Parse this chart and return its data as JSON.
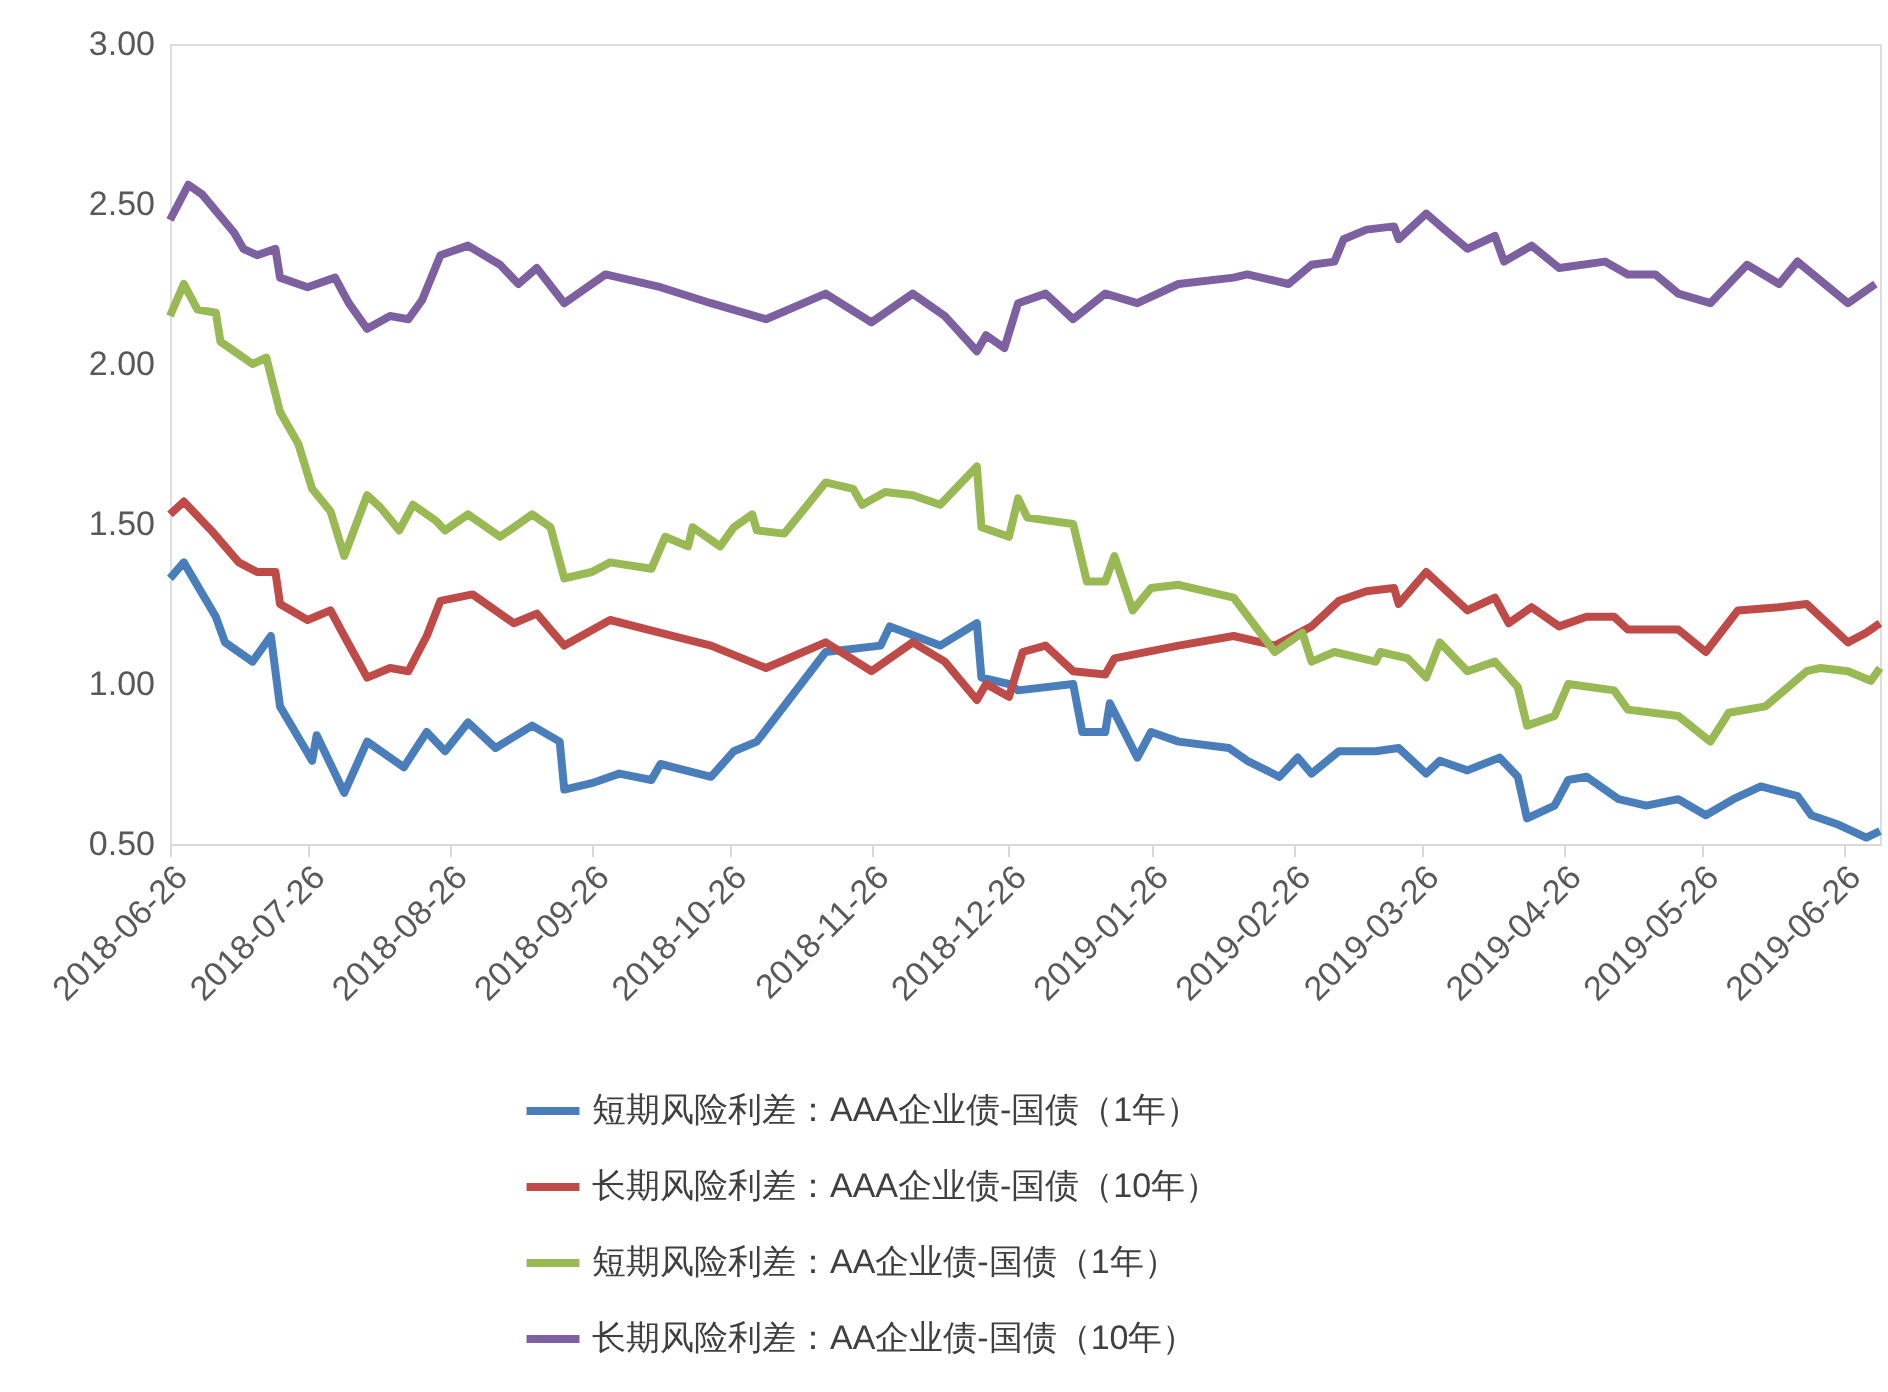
{
  "chart_data": {
    "type": "line",
    "xlim": [
      "2018-06-26",
      "2019-07-04"
    ],
    "xticks": [
      "2018-06-26",
      "2018-07-26",
      "2018-08-26",
      "2018-09-26",
      "2018-10-26",
      "2018-11-26",
      "2018-12-26",
      "2019-01-26",
      "2019-02-26",
      "2019-03-26",
      "2019-04-26",
      "2019-05-26",
      "2019-06-26"
    ],
    "ylim": [
      0.5,
      3.0
    ],
    "yticks": [
      {
        "value": 0.5,
        "label": "0.50"
      },
      {
        "value": 1.0,
        "label": "1.00"
      },
      {
        "value": 1.5,
        "label": "1.50"
      },
      {
        "value": 2.0,
        "label": "2.00"
      },
      {
        "value": 2.5,
        "label": "2.50"
      },
      {
        "value": 3.0,
        "label": "3.00"
      }
    ],
    "grid": false,
    "legend": "bottom",
    "series": [
      {
        "name": "短期风险利差：AAA企业债-国债（1年）",
        "color": "#4a7ebb",
        "x": [
          "2018-06-26",
          "2018-06-29",
          "2018-07-06",
          "2018-07-08",
          "2018-07-14",
          "2018-07-18",
          "2018-07-20",
          "2018-07-27",
          "2018-07-28",
          "2018-08-03",
          "2018-08-08",
          "2018-08-16",
          "2018-08-21",
          "2018-08-25",
          "2018-08-30",
          "2018-09-05",
          "2018-09-13",
          "2018-09-19",
          "2018-09-20",
          "2018-09-26",
          "2018-10-02",
          "2018-10-09",
          "2018-10-11",
          "2018-10-22",
          "2018-10-27",
          "2018-11-01",
          "2018-11-16",
          "2018-11-28",
          "2018-11-30",
          "2018-12-11",
          "2018-12-19",
          "2018-12-20",
          "2018-12-26",
          "2018-12-28",
          "2019-01-09",
          "2019-01-11",
          "2019-01-16",
          "2019-01-17",
          "2019-01-23",
          "2019-01-26",
          "2019-02-01",
          "2019-02-12",
          "2019-02-16",
          "2019-02-23",
          "2019-02-27",
          "2019-03-02",
          "2019-03-08",
          "2019-03-16",
          "2019-03-21",
          "2019-03-27",
          "2019-03-30",
          "2019-04-05",
          "2019-04-12",
          "2019-04-16",
          "2019-04-18",
          "2019-04-24",
          "2019-04-27",
          "2019-05-01",
          "2019-05-08",
          "2019-05-14",
          "2019-05-21",
          "2019-05-27",
          "2019-06-02",
          "2019-06-08",
          "2019-06-16",
          "2019-06-19",
          "2019-06-25",
          "2019-07-01",
          "2019-07-04"
        ],
        "values": [
          1.33,
          1.38,
          1.21,
          1.13,
          1.07,
          1.15,
          0.93,
          0.76,
          0.84,
          0.66,
          0.82,
          0.74,
          0.85,
          0.79,
          0.88,
          0.8,
          0.87,
          0.82,
          0.67,
          0.69,
          0.72,
          0.7,
          0.75,
          0.71,
          0.79,
          0.82,
          1.1,
          1.12,
          1.18,
          1.12,
          1.19,
          1.02,
          1.0,
          0.98,
          1.0,
          0.85,
          0.85,
          0.94,
          0.77,
          0.85,
          0.82,
          0.8,
          0.76,
          0.71,
          0.77,
          0.72,
          0.79,
          0.79,
          0.8,
          0.72,
          0.76,
          0.73,
          0.77,
          0.71,
          0.58,
          0.62,
          0.7,
          0.71,
          0.64,
          0.62,
          0.64,
          0.59,
          0.64,
          0.68,
          0.65,
          0.59,
          0.56,
          0.52,
          0.54
        ]
      },
      {
        "name": "长期风险利差：AAA企业债-国债（10年）",
        "color": "#be4b48",
        "x": [
          "2018-06-26",
          "2018-06-29",
          "2018-07-05",
          "2018-07-11",
          "2018-07-15",
          "2018-07-19",
          "2018-07-20",
          "2018-07-26",
          "2018-07-31",
          "2018-08-03",
          "2018-08-08",
          "2018-08-13",
          "2018-08-17",
          "2018-08-21",
          "2018-08-24",
          "2018-08-31",
          "2018-09-09",
          "2018-09-14",
          "2018-09-20",
          "2018-09-30",
          "2018-10-11",
          "2018-10-22",
          "2018-11-03",
          "2018-11-16",
          "2018-11-26",
          "2018-12-05",
          "2018-12-12",
          "2018-12-19",
          "2018-12-21",
          "2018-12-26",
          "2018-12-29",
          "2019-01-03",
          "2019-01-09",
          "2019-01-16",
          "2019-01-18",
          "2019-02-01",
          "2019-02-13",
          "2019-02-22",
          "2019-03-02",
          "2019-03-08",
          "2019-03-14",
          "2019-03-20",
          "2019-03-21",
          "2019-03-27",
          "2019-04-05",
          "2019-04-11",
          "2019-04-14",
          "2019-04-19",
          "2019-04-25",
          "2019-05-01",
          "2019-05-07",
          "2019-05-10",
          "2019-05-21",
          "2019-05-27",
          "2019-06-03",
          "2019-06-12",
          "2019-06-18",
          "2019-06-27",
          "2019-07-01",
          "2019-07-04"
        ],
        "values": [
          1.53,
          1.57,
          1.48,
          1.38,
          1.35,
          1.35,
          1.25,
          1.2,
          1.23,
          1.15,
          1.02,
          1.05,
          1.04,
          1.15,
          1.26,
          1.28,
          1.19,
          1.22,
          1.12,
          1.2,
          1.16,
          1.12,
          1.05,
          1.13,
          1.04,
          1.13,
          1.07,
          0.95,
          1.0,
          0.96,
          1.1,
          1.12,
          1.04,
          1.03,
          1.08,
          1.12,
          1.15,
          1.12,
          1.18,
          1.26,
          1.29,
          1.3,
          1.25,
          1.35,
          1.23,
          1.27,
          1.19,
          1.24,
          1.18,
          1.21,
          1.21,
          1.17,
          1.17,
          1.1,
          1.23,
          1.24,
          1.25,
          1.13,
          1.16,
          1.19
        ]
      },
      {
        "name": "短期风险利差：AA企业债-国债（1年）",
        "color": "#98b954",
        "x": [
          "2018-06-26",
          "2018-06-29",
          "2018-07-02",
          "2018-07-06",
          "2018-07-07",
          "2018-07-14",
          "2018-07-17",
          "2018-07-20",
          "2018-07-24",
          "2018-07-27",
          "2018-07-31",
          "2018-08-03",
          "2018-08-08",
          "2018-08-11",
          "2018-08-15",
          "2018-08-18",
          "2018-08-23",
          "2018-08-25",
          "2018-08-30",
          "2018-09-06",
          "2018-09-13",
          "2018-09-17",
          "2018-09-20",
          "2018-09-26",
          "2018-09-30",
          "2018-10-09",
          "2018-10-12",
          "2018-10-17",
          "2018-10-18",
          "2018-10-24",
          "2018-10-27",
          "2018-10-31",
          "2018-11-01",
          "2018-11-07",
          "2018-11-16",
          "2018-11-22",
          "2018-11-24",
          "2018-11-29",
          "2018-12-05",
          "2018-12-11",
          "2018-12-19",
          "2018-12-20",
          "2018-12-26",
          "2018-12-28",
          "2018-12-30",
          "2019-01-09",
          "2019-01-12",
          "2019-01-16",
          "2019-01-18",
          "2019-01-22",
          "2019-01-26",
          "2019-02-01",
          "2019-02-13",
          "2019-02-22",
          "2019-02-28",
          "2019-03-02",
          "2019-03-07",
          "2019-03-16",
          "2019-03-17",
          "2019-03-23",
          "2019-03-27",
          "2019-03-30",
          "2019-04-05",
          "2019-04-11",
          "2019-04-16",
          "2019-04-18",
          "2019-04-24",
          "2019-04-27",
          "2019-05-07",
          "2019-05-10",
          "2019-05-21",
          "2019-05-28",
          "2019-06-01",
          "2019-06-09",
          "2019-06-18",
          "2019-06-21",
          "2019-06-27",
          "2019-07-02",
          "2019-07-04"
        ],
        "values": [
          2.15,
          2.25,
          2.17,
          2.16,
          2.07,
          2.0,
          2.02,
          1.85,
          1.75,
          1.61,
          1.54,
          1.4,
          1.59,
          1.55,
          1.48,
          1.56,
          1.51,
          1.48,
          1.53,
          1.46,
          1.53,
          1.49,
          1.33,
          1.35,
          1.38,
          1.36,
          1.46,
          1.43,
          1.49,
          1.43,
          1.49,
          1.53,
          1.48,
          1.47,
          1.63,
          1.61,
          1.56,
          1.6,
          1.59,
          1.56,
          1.68,
          1.49,
          1.46,
          1.58,
          1.52,
          1.5,
          1.32,
          1.32,
          1.4,
          1.23,
          1.3,
          1.31,
          1.27,
          1.1,
          1.16,
          1.07,
          1.1,
          1.07,
          1.1,
          1.08,
          1.02,
          1.13,
          1.04,
          1.07,
          0.99,
          0.87,
          0.9,
          1.0,
          0.98,
          0.92,
          0.9,
          0.82,
          0.91,
          0.93,
          1.04,
          1.05,
          1.04,
          1.01,
          1.05
        ]
      },
      {
        "name": "长期风险利差：AA企业债-国债（10年）",
        "color": "#7d60a0",
        "x": [
          "2018-06-26",
          "2018-06-30",
          "2018-07-03",
          "2018-07-10",
          "2018-07-12",
          "2018-07-15",
          "2018-07-19",
          "2018-07-20",
          "2018-07-26",
          "2018-08-01",
          "2018-08-04",
          "2018-08-08",
          "2018-08-13",
          "2018-08-17",
          "2018-08-20",
          "2018-08-24",
          "2018-08-30",
          "2018-09-06",
          "2018-09-10",
          "2018-09-14",
          "2018-09-20",
          "2018-09-29",
          "2018-10-11",
          "2018-10-22",
          "2018-11-03",
          "2018-11-16",
          "2018-11-26",
          "2018-12-05",
          "2018-12-12",
          "2018-12-19",
          "2018-12-21",
          "2018-12-25",
          "2018-12-28",
          "2019-01-03",
          "2019-01-09",
          "2019-01-16",
          "2019-01-23",
          "2019-02-01",
          "2019-02-13",
          "2019-02-16",
          "2019-02-25",
          "2019-03-02",
          "2019-03-07",
          "2019-03-09",
          "2019-03-14",
          "2019-03-20",
          "2019-03-21",
          "2019-03-27",
          "2019-03-31",
          "2019-04-05",
          "2019-04-11",
          "2019-04-13",
          "2019-04-19",
          "2019-04-25",
          "2019-05-05",
          "2019-05-10",
          "2019-05-16",
          "2019-05-21",
          "2019-05-28",
          "2019-06-05",
          "2019-06-12",
          "2019-06-16",
          "2019-06-27",
          "2019-07-03"
        ],
        "values": [
          2.45,
          2.56,
          2.53,
          2.41,
          2.36,
          2.34,
          2.36,
          2.27,
          2.24,
          2.27,
          2.19,
          2.11,
          2.15,
          2.14,
          2.2,
          2.34,
          2.37,
          2.31,
          2.25,
          2.3,
          2.19,
          2.28,
          2.24,
          2.19,
          2.14,
          2.22,
          2.13,
          2.22,
          2.15,
          2.04,
          2.09,
          2.05,
          2.19,
          2.22,
          2.14,
          2.22,
          2.19,
          2.25,
          2.27,
          2.28,
          2.25,
          2.31,
          2.32,
          2.39,
          2.42,
          2.43,
          2.39,
          2.47,
          2.42,
          2.36,
          2.4,
          2.32,
          2.37,
          2.3,
          2.32,
          2.28,
          2.28,
          2.22,
          2.19,
          2.31,
          2.25,
          2.32,
          2.19,
          2.25
        ]
      }
    ]
  }
}
